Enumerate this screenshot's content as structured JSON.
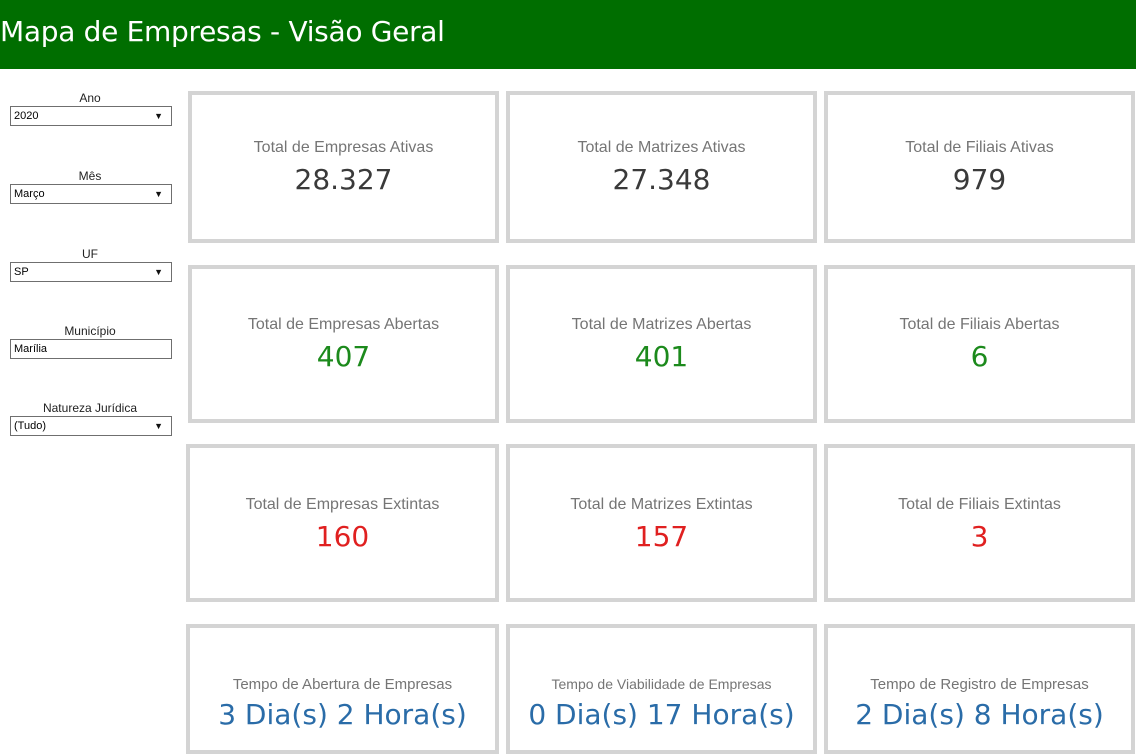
{
  "header": {
    "title": "Mapa de Empresas - Visão Geral"
  },
  "colors": {
    "header_bg": "#006e00",
    "active": "#3a3a3a",
    "opened": "#1c8a1c",
    "closed": "#e02020",
    "time": "#2a6ca8",
    "card_border": "#d4d4d4"
  },
  "filters": {
    "ano": {
      "label": "Ano",
      "value": "2020"
    },
    "mes": {
      "label": "Mês",
      "value": "Março"
    },
    "uf": {
      "label": "UF",
      "value": "SP"
    },
    "municipio": {
      "label": "Município",
      "value": "Marília"
    },
    "natureza": {
      "label": "Natureza Jurídica",
      "value": "(Tudo)"
    }
  },
  "cards": {
    "ativas": [
      {
        "label": "Total de Empresas Ativas",
        "value": "28.327"
      },
      {
        "label": "Total de Matrizes Ativas",
        "value": "27.348"
      },
      {
        "label": "Total de Filiais Ativas",
        "value": "979"
      }
    ],
    "abertas": [
      {
        "label": "Total de Empresas Abertas",
        "value": "407"
      },
      {
        "label": "Total de Matrizes Abertas",
        "value": "401"
      },
      {
        "label": "Total de Filiais Abertas",
        "value": "6"
      }
    ],
    "extintas": [
      {
        "label": "Total de Empresas Extintas",
        "value": "160"
      },
      {
        "label": "Total de Matrizes Extintas",
        "value": "157"
      },
      {
        "label": "Total de Filiais Extintas",
        "value": "3"
      }
    ],
    "tempo": [
      {
        "label": "Tempo de Abertura de Empresas",
        "value": "3 Dia(s) 2 Hora(s)"
      },
      {
        "label": "Tempo de Viabilidade de Empresas",
        "value": "0 Dia(s) 17 Hora(s)"
      },
      {
        "label": "Tempo de Registro de Empresas",
        "value": "2 Dia(s) 8 Hora(s)"
      }
    ]
  }
}
